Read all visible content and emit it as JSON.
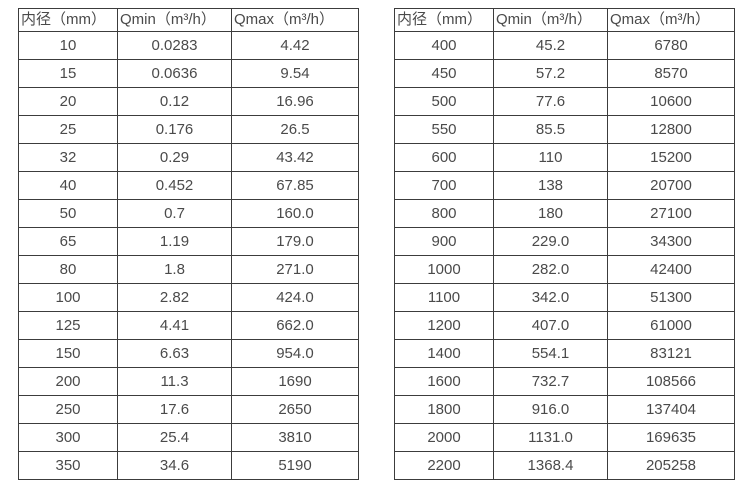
{
  "page": {
    "background_color": "#ffffff",
    "border_color": "#3c3c3c",
    "text_color": "#4a4a4a"
  },
  "tables": [
    {
      "name": "flow-table-small-diameters",
      "headers": [
        "内径（mm）",
        "Qmin（m³/h）",
        "Qmax（m³/h）"
      ],
      "rows": [
        [
          "10",
          "0.0283",
          "4.42"
        ],
        [
          "15",
          "0.0636",
          "9.54"
        ],
        [
          "20",
          "0.12",
          "16.96"
        ],
        [
          "25",
          "0.176",
          "26.5"
        ],
        [
          "32",
          "0.29",
          "43.42"
        ],
        [
          "40",
          "0.452",
          "67.85"
        ],
        [
          "50",
          "0.7",
          "160.0"
        ],
        [
          "65",
          "1.19",
          "179.0"
        ],
        [
          "80",
          "1.8",
          "271.0"
        ],
        [
          "100",
          "2.82",
          "424.0"
        ],
        [
          "125",
          "4.41",
          "662.0"
        ],
        [
          "150",
          "6.63",
          "954.0"
        ],
        [
          "200",
          "11.3",
          "1690"
        ],
        [
          "250",
          "17.6",
          "2650"
        ],
        [
          "300",
          "25.4",
          "3810"
        ],
        [
          "350",
          "34.6",
          "5190"
        ]
      ]
    },
    {
      "name": "flow-table-large-diameters",
      "headers": [
        "内径（mm）",
        "Qmin（m³/h）",
        "Qmax（m³/h）"
      ],
      "rows": [
        [
          "400",
          "45.2",
          "6780"
        ],
        [
          "450",
          "57.2",
          "8570"
        ],
        [
          "500",
          "77.6",
          "10600"
        ],
        [
          "550",
          "85.5",
          "12800"
        ],
        [
          "600",
          "110",
          "15200"
        ],
        [
          "700",
          "138",
          "20700"
        ],
        [
          "800",
          "180",
          "27100"
        ],
        [
          "900",
          "229.0",
          "34300"
        ],
        [
          "1000",
          "282.0",
          "42400"
        ],
        [
          "1100",
          "342.0",
          "51300"
        ],
        [
          "1200",
          "407.0",
          "61000"
        ],
        [
          "1400",
          "554.1",
          "83121"
        ],
        [
          "1600",
          "732.7",
          "108566"
        ],
        [
          "1800",
          "916.0",
          "137404"
        ],
        [
          "2000",
          "1131.0",
          "169635"
        ],
        [
          "2200",
          "1368.4",
          "205258"
        ]
      ]
    }
  ]
}
